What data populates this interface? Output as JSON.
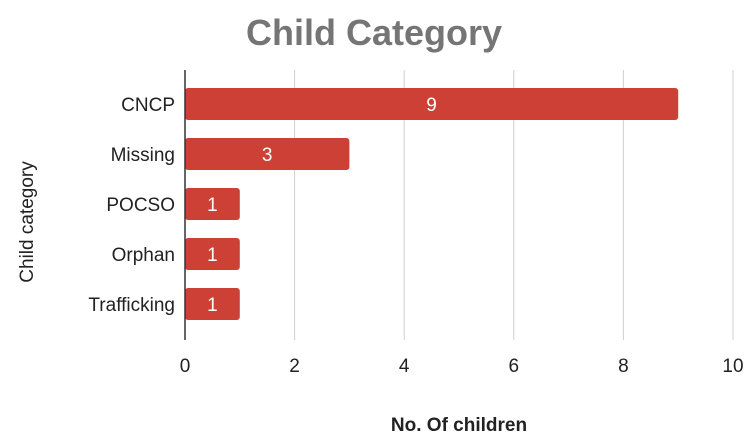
{
  "chart_data": {
    "type": "bar",
    "orientation": "horizontal",
    "title": "Child Category",
    "xlabel": "No. Of children",
    "ylabel": "Child category",
    "categories": [
      "CNCP",
      "Missing",
      "POCSO",
      "Orphan",
      "Trafficking"
    ],
    "values": [
      9,
      3,
      1,
      1,
      1
    ],
    "data_labels": [
      "9",
      "3",
      "1",
      "1",
      "1"
    ],
    "xlim": [
      0,
      10
    ],
    "x_ticks": [
      0,
      2,
      4,
      6,
      8,
      10
    ],
    "grid": true,
    "legend": "none",
    "colors": {
      "bar": "#cc4036",
      "grid": "#d0d0d0",
      "axis": "#333333",
      "title": "#757575"
    }
  }
}
